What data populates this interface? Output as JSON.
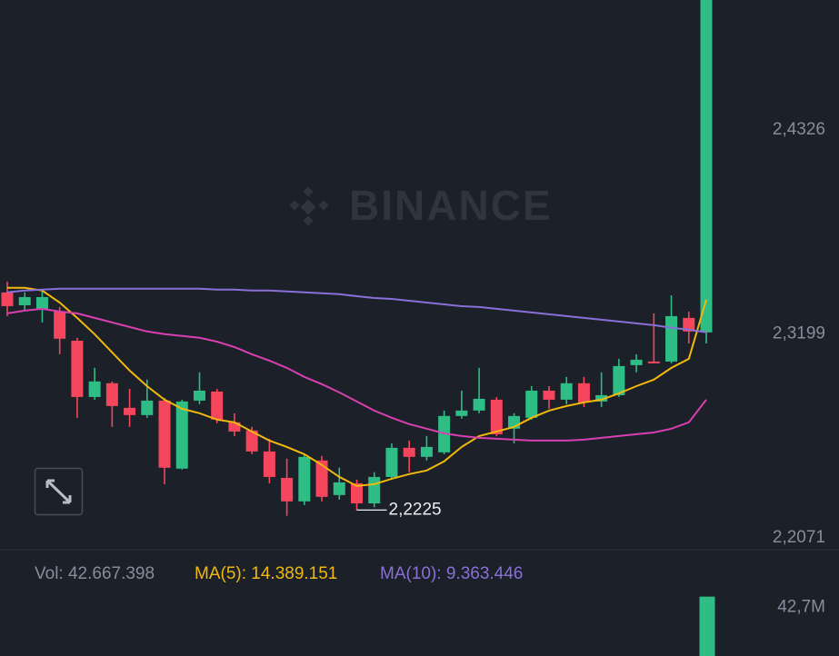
{
  "watermark": "BINANCE",
  "chart_data": {
    "type": "candlestick",
    "up_color": "#2ebd85",
    "down_color": "#f6465d",
    "open": [
      2.3428,
      2.3357,
      2.3332,
      2.3322,
      2.3161,
      2.285,
      2.2926,
      2.279,
      2.275,
      2.283,
      2.2454,
      2.283,
      2.288,
      2.271,
      2.2665,
      2.2549,
      2.2403,
      2.2273,
      2.2499,
      2.2308,
      2.2373,
      2.2262,
      2.2408,
      2.2569,
      2.2519,
      2.2544,
      2.2745,
      2.2775,
      2.2835,
      2.2675,
      2.2735,
      2.2885,
      2.2835,
      2.2926,
      2.2825,
      2.286,
      2.3026,
      2.3046,
      2.3046,
      2.3287,
      2.3207
    ],
    "high": [
      2.3488,
      2.3428,
      2.3438,
      2.3347,
      2.3177,
      2.3011,
      2.2936,
      2.2895,
      2.2946,
      2.2845,
      2.2835,
      2.2986,
      2.2895,
      2.276,
      2.2685,
      2.2619,
      2.2509,
      2.2534,
      2.2524,
      2.2459,
      2.2393,
      2.2434,
      2.2594,
      2.2609,
      2.2634,
      2.2775,
      2.2885,
      2.3011,
      2.285,
      2.276,
      2.291,
      2.291,
      2.2961,
      2.2961,
      2.2986,
      2.3061,
      2.3086,
      2.3312,
      2.3412,
      2.3322,
      2.5044
    ],
    "low": [
      2.3297,
      2.3327,
      2.3262,
      2.3086,
      2.2735,
      2.2835,
      2.2685,
      2.2685,
      2.2735,
      2.2368,
      2.2449,
      2.281,
      2.2705,
      2.2634,
      2.2534,
      2.2373,
      2.2193,
      2.2253,
      2.2273,
      2.2283,
      2.2225,
      2.224,
      2.2398,
      2.2434,
      2.2499,
      2.2534,
      2.273,
      2.276,
      2.2634,
      2.2594,
      2.2725,
      2.2785,
      2.281,
      2.2795,
      2.2795,
      2.285,
      2.2986,
      2.3036,
      2.3036,
      2.3146,
      2.3146
    ],
    "close": [
      2.3352,
      2.3402,
      2.3402,
      2.3172,
      2.285,
      2.2936,
      2.28,
      2.275,
      2.283,
      2.2459,
      2.2825,
      2.2885,
      2.2725,
      2.2659,
      2.2549,
      2.2408,
      2.2273,
      2.2519,
      2.2298,
      2.2378,
      2.2262,
      2.2408,
      2.2569,
      2.2519,
      2.2574,
      2.2745,
      2.2775,
      2.284,
      2.2644,
      2.2745,
      2.2885,
      2.2835,
      2.2926,
      2.282,
      2.286,
      2.3021,
      2.3056,
      2.3036,
      2.3297,
      2.3212,
      2.5044
    ],
    "series": [
      {
        "color": "#f0b90b",
        "values": [
          2.3453,
          2.3453,
          2.3438,
          2.3372,
          2.3287,
          2.3197,
          2.3096,
          2.2996,
          2.291,
          2.2835,
          2.2785,
          2.276,
          2.2725,
          2.271,
          2.2659,
          2.2609,
          2.2574,
          2.2534,
          2.2474,
          2.2408,
          2.2358,
          2.2368,
          2.2398,
          2.2424,
          2.2444,
          2.2494,
          2.2574,
          2.2634,
          2.2659,
          2.2685,
          2.2735,
          2.2775,
          2.28,
          2.282,
          2.2835,
          2.287,
          2.291,
          2.2946,
          2.3011,
          2.3061,
          2.3387
        ]
      },
      {
        "color": "#d83fb0",
        "values": [
          2.3312,
          2.3327,
          2.3337,
          2.3322,
          2.3312,
          2.3287,
          2.3262,
          2.3237,
          2.3212,
          2.3197,
          2.3187,
          2.3177,
          2.3156,
          2.3126,
          2.3086,
          2.3051,
          2.3011,
          2.2961,
          2.2921,
          2.2875,
          2.2825,
          2.2775,
          2.2735,
          2.27,
          2.2675,
          2.2649,
          2.2634,
          2.2624,
          2.2619,
          2.2614,
          2.2609,
          2.2609,
          2.2609,
          2.2614,
          2.2624,
          2.2634,
          2.2644,
          2.2654,
          2.2675,
          2.271,
          2.2835
        ]
      },
      {
        "color": "#8a6fd8",
        "values": [
          2.3428,
          2.3438,
          2.3443,
          2.3448,
          2.3448,
          2.3448,
          2.3448,
          2.3448,
          2.3448,
          2.3448,
          2.3448,
          2.3448,
          2.3443,
          2.3443,
          2.3438,
          2.3438,
          2.3433,
          2.3428,
          2.3423,
          2.3418,
          2.3407,
          2.3397,
          2.3392,
          2.3382,
          2.3372,
          2.3362,
          2.3352,
          2.3347,
          2.3337,
          2.3327,
          2.3317,
          2.3307,
          2.3297,
          2.3287,
          2.3277,
          2.3267,
          2.3257,
          2.3247,
          2.3232,
          2.3222,
          2.3207
        ]
      }
    ],
    "ylim": [
      2.2006,
      2.5044
    ],
    "yticks": [
      {
        "value": 2.4326,
        "label": "2,4326"
      },
      {
        "value": 2.3199,
        "label": "2,3199"
      },
      {
        "value": 2.2071,
        "label": "2,2071"
      }
    ],
    "low_annotation": {
      "index": 20,
      "value": 2.2225,
      "label": "2,2225"
    },
    "volume_legend": [
      {
        "text": "Vol: 42.667.398",
        "color": "#848e9c"
      },
      {
        "text": "MA(5): 14.389.151",
        "color": "#f0b90b"
      },
      {
        "text": "MA(10): 9.363.446",
        "color": "#8a6fd8"
      }
    ],
    "volume": {
      "index": 40,
      "value": 42667398,
      "color": "#2ebd85"
    },
    "volume_ylim": [
      0,
      47000000
    ],
    "volume_ticks": [
      {
        "value": 42700000,
        "label": "42,7M"
      }
    ]
  }
}
